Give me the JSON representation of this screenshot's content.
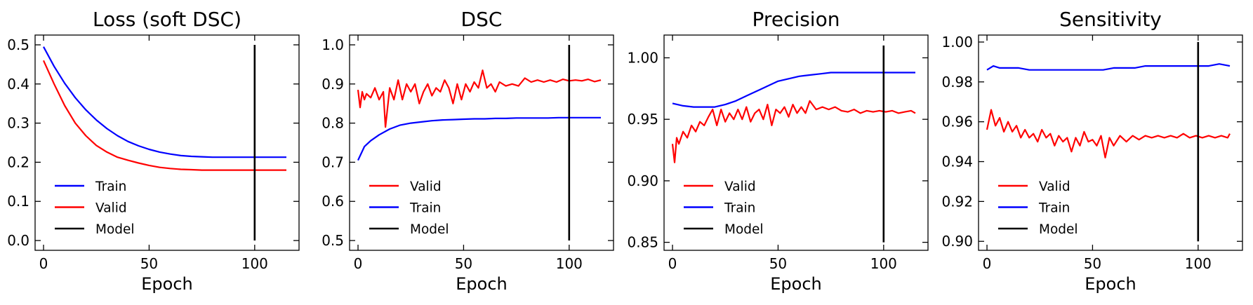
{
  "chart_data": [
    {
      "type": "line",
      "title": "Loss (soft DSC)",
      "xlabel": "Epoch",
      "ylabel": "",
      "xlim": [
        -4,
        121
      ],
      "ylim": [
        -0.025,
        0.525
      ],
      "xticks": [
        0,
        50,
        100
      ],
      "xtick_labels": [
        "0",
        "50",
        "100"
      ],
      "yticks": [
        0.0,
        0.1,
        0.2,
        0.3,
        0.4,
        0.5
      ],
      "ytick_labels": [
        "0.0",
        "0.1",
        "0.2",
        "0.3",
        "0.4",
        "0.5"
      ],
      "grid": false,
      "legend_position": "lower-left",
      "legend": [
        {
          "label": "Train",
          "color": "#0000ff"
        },
        {
          "label": "Valid",
          "color": "#ff0000"
        },
        {
          "label": "Model",
          "color": "#000000"
        }
      ],
      "series": [
        {
          "name": "Train",
          "color": "#0000ff",
          "x": [
            0,
            5,
            10,
            15,
            20,
            25,
            30,
            35,
            40,
            45,
            50,
            55,
            60,
            65,
            70,
            75,
            80,
            85,
            90,
            95,
            100,
            105,
            110,
            115
          ],
          "y": [
            0.495,
            0.445,
            0.402,
            0.365,
            0.334,
            0.308,
            0.286,
            0.268,
            0.253,
            0.242,
            0.233,
            0.226,
            0.221,
            0.217,
            0.215,
            0.214,
            0.213,
            0.213,
            0.213,
            0.213,
            0.213,
            0.213,
            0.213,
            0.213
          ]
        },
        {
          "name": "Valid",
          "color": "#ff0000",
          "x": [
            0,
            5,
            10,
            15,
            20,
            25,
            30,
            35,
            40,
            45,
            50,
            55,
            60,
            65,
            70,
            75,
            80,
            85,
            90,
            95,
            100,
            105,
            110,
            115
          ],
          "y": [
            0.46,
            0.4,
            0.345,
            0.3,
            0.268,
            0.243,
            0.226,
            0.213,
            0.205,
            0.198,
            0.192,
            0.187,
            0.184,
            0.182,
            0.181,
            0.18,
            0.18,
            0.18,
            0.18,
            0.18,
            0.18,
            0.18,
            0.18,
            0.18
          ]
        },
        {
          "name": "Model",
          "color": "#000000",
          "x": [
            100,
            100
          ],
          "y": [
            0.0,
            0.5
          ]
        }
      ]
    },
    {
      "type": "line",
      "title": "DSC",
      "xlabel": "Epoch",
      "ylabel": "",
      "xlim": [
        -4,
        121
      ],
      "ylim": [
        0.475,
        1.025
      ],
      "xticks": [
        0,
        50,
        100
      ],
      "xtick_labels": [
        "0",
        "50",
        "100"
      ],
      "yticks": [
        0.5,
        0.6,
        0.7,
        0.8,
        0.9,
        1.0
      ],
      "ytick_labels": [
        "0.5",
        "0.6",
        "0.7",
        "0.8",
        "0.9",
        "1.0"
      ],
      "grid": false,
      "legend_position": "lower-left",
      "legend": [
        {
          "label": "Valid",
          "color": "#ff0000"
        },
        {
          "label": "Train",
          "color": "#0000ff"
        },
        {
          "label": "Model",
          "color": "#000000"
        }
      ],
      "series": [
        {
          "name": "Valid",
          "color": "#ff0000",
          "x": [
            0,
            1,
            2,
            3,
            4,
            6,
            8,
            10,
            12,
            13,
            15,
            17,
            19,
            21,
            23,
            25,
            27,
            29,
            31,
            33,
            35,
            37,
            39,
            41,
            43,
            45,
            47,
            49,
            51,
            53,
            55,
            57,
            59,
            61,
            63,
            65,
            67,
            70,
            73,
            76,
            79,
            82,
            85,
            88,
            91,
            94,
            97,
            100,
            103,
            106,
            109,
            112,
            115
          ],
          "y": [
            0.885,
            0.84,
            0.88,
            0.86,
            0.875,
            0.865,
            0.89,
            0.86,
            0.88,
            0.79,
            0.89,
            0.86,
            0.91,
            0.86,
            0.9,
            0.88,
            0.9,
            0.85,
            0.88,
            0.9,
            0.87,
            0.89,
            0.88,
            0.91,
            0.89,
            0.85,
            0.9,
            0.86,
            0.9,
            0.88,
            0.905,
            0.89,
            0.935,
            0.89,
            0.9,
            0.88,
            0.905,
            0.895,
            0.9,
            0.895,
            0.915,
            0.905,
            0.91,
            0.905,
            0.91,
            0.905,
            0.912,
            0.908,
            0.91,
            0.908,
            0.912,
            0.906,
            0.91
          ]
        },
        {
          "name": "Train",
          "color": "#0000ff",
          "x": [
            0,
            3,
            6,
            10,
            15,
            20,
            25,
            30,
            35,
            40,
            45,
            50,
            55,
            60,
            65,
            70,
            75,
            80,
            85,
            90,
            95,
            100,
            105,
            110,
            115
          ],
          "y": [
            0.705,
            0.74,
            0.755,
            0.77,
            0.785,
            0.795,
            0.8,
            0.803,
            0.806,
            0.808,
            0.809,
            0.81,
            0.811,
            0.811,
            0.812,
            0.812,
            0.813,
            0.813,
            0.813,
            0.813,
            0.814,
            0.814,
            0.814,
            0.814,
            0.814
          ]
        },
        {
          "name": "Model",
          "color": "#000000",
          "x": [
            100,
            100
          ],
          "y": [
            0.5,
            1.0
          ]
        }
      ]
    },
    {
      "type": "line",
      "title": "Precision",
      "xlabel": "Epoch",
      "ylabel": "",
      "xlim": [
        -4,
        121
      ],
      "ylim": [
        0.8435,
        1.0185
      ],
      "xticks": [
        0,
        50,
        100
      ],
      "xtick_labels": [
        "0",
        "50",
        "100"
      ],
      "yticks": [
        0.85,
        0.9,
        0.95,
        1.0
      ],
      "ytick_labels": [
        "0.85",
        "0.90",
        "0.95",
        "1.00"
      ],
      "grid": false,
      "legend_position": "lower-left",
      "legend": [
        {
          "label": "Valid",
          "color": "#ff0000"
        },
        {
          "label": "Train",
          "color": "#0000ff"
        },
        {
          "label": "Model",
          "color": "#000000"
        }
      ],
      "series": [
        {
          "name": "Valid",
          "color": "#ff0000",
          "x": [
            0,
            1,
            2,
            3,
            5,
            7,
            9,
            11,
            13,
            15,
            17,
            19,
            21,
            23,
            25,
            27,
            29,
            31,
            33,
            35,
            37,
            39,
            41,
            43,
            45,
            47,
            49,
            51,
            53,
            55,
            57,
            59,
            61,
            63,
            65,
            68,
            71,
            74,
            77,
            80,
            83,
            86,
            89,
            92,
            95,
            98,
            101,
            104,
            107,
            110,
            113,
            115
          ],
          "y": [
            0.93,
            0.915,
            0.935,
            0.93,
            0.94,
            0.935,
            0.945,
            0.94,
            0.948,
            0.945,
            0.952,
            0.958,
            0.945,
            0.958,
            0.948,
            0.955,
            0.95,
            0.958,
            0.95,
            0.96,
            0.948,
            0.955,
            0.958,
            0.95,
            0.962,
            0.945,
            0.958,
            0.955,
            0.96,
            0.952,
            0.962,
            0.955,
            0.96,
            0.955,
            0.965,
            0.958,
            0.96,
            0.958,
            0.96,
            0.957,
            0.956,
            0.958,
            0.955,
            0.957,
            0.956,
            0.957,
            0.956,
            0.957,
            0.955,
            0.956,
            0.957,
            0.955
          ]
        },
        {
          "name": "Train",
          "color": "#0000ff",
          "x": [
            0,
            5,
            10,
            15,
            20,
            25,
            30,
            35,
            40,
            45,
            50,
            55,
            60,
            65,
            70,
            75,
            80,
            85,
            90,
            95,
            100,
            105,
            110,
            115
          ],
          "y": [
            0.963,
            0.961,
            0.96,
            0.96,
            0.96,
            0.962,
            0.965,
            0.969,
            0.973,
            0.977,
            0.981,
            0.983,
            0.985,
            0.986,
            0.987,
            0.988,
            0.988,
            0.988,
            0.988,
            0.988,
            0.988,
            0.988,
            0.988,
            0.988
          ]
        },
        {
          "name": "Model",
          "color": "#000000",
          "x": [
            100,
            100
          ],
          "y": [
            0.85,
            1.01
          ]
        }
      ]
    },
    {
      "type": "line",
      "title": "Sensitivity",
      "xlabel": "Epoch",
      "ylabel": "",
      "xlim": [
        -4,
        121
      ],
      "ylim": [
        0.8955,
        1.0035
      ],
      "xticks": [
        0,
        50,
        100
      ],
      "xtick_labels": [
        "0",
        "50",
        "100"
      ],
      "yticks": [
        0.9,
        0.92,
        0.94,
        0.96,
        0.98,
        1.0
      ],
      "ytick_labels": [
        "0.90",
        "0.92",
        "0.94",
        "0.96",
        "0.98",
        "1.00"
      ],
      "grid": false,
      "legend_position": "lower-left",
      "legend": [
        {
          "label": "Valid",
          "color": "#ff0000"
        },
        {
          "label": "Train",
          "color": "#0000ff"
        },
        {
          "label": "Model",
          "color": "#000000"
        }
      ],
      "series": [
        {
          "name": "Valid",
          "color": "#ff0000",
          "x": [
            0,
            2,
            4,
            6,
            8,
            10,
            12,
            14,
            16,
            18,
            20,
            22,
            24,
            26,
            28,
            30,
            32,
            34,
            36,
            38,
            40,
            42,
            44,
            46,
            48,
            50,
            52,
            54,
            56,
            58,
            60,
            63,
            66,
            69,
            72,
            75,
            78,
            81,
            84,
            87,
            90,
            93,
            96,
            99,
            102,
            105,
            108,
            111,
            114,
            115
          ],
          "y": [
            0.956,
            0.966,
            0.958,
            0.962,
            0.955,
            0.96,
            0.955,
            0.958,
            0.952,
            0.956,
            0.952,
            0.954,
            0.95,
            0.956,
            0.952,
            0.954,
            0.948,
            0.953,
            0.95,
            0.952,
            0.945,
            0.952,
            0.948,
            0.955,
            0.95,
            0.951,
            0.948,
            0.953,
            0.942,
            0.952,
            0.948,
            0.953,
            0.95,
            0.953,
            0.951,
            0.953,
            0.952,
            0.953,
            0.952,
            0.953,
            0.952,
            0.954,
            0.952,
            0.953,
            0.952,
            0.953,
            0.952,
            0.953,
            0.952,
            0.954
          ]
        },
        {
          "name": "Train",
          "color": "#0000ff",
          "x": [
            0,
            3,
            6,
            10,
            15,
            20,
            25,
            30,
            35,
            40,
            45,
            50,
            55,
            60,
            65,
            70,
            75,
            80,
            85,
            90,
            95,
            100,
            105,
            110,
            115
          ],
          "y": [
            0.986,
            0.988,
            0.987,
            0.987,
            0.987,
            0.986,
            0.986,
            0.986,
            0.986,
            0.986,
            0.986,
            0.986,
            0.986,
            0.987,
            0.987,
            0.987,
            0.988,
            0.988,
            0.988,
            0.988,
            0.988,
            0.988,
            0.988,
            0.989,
            0.988
          ]
        },
        {
          "name": "Model",
          "color": "#000000",
          "x": [
            100,
            100
          ],
          "y": [
            0.9,
            1.0
          ]
        }
      ]
    }
  ]
}
